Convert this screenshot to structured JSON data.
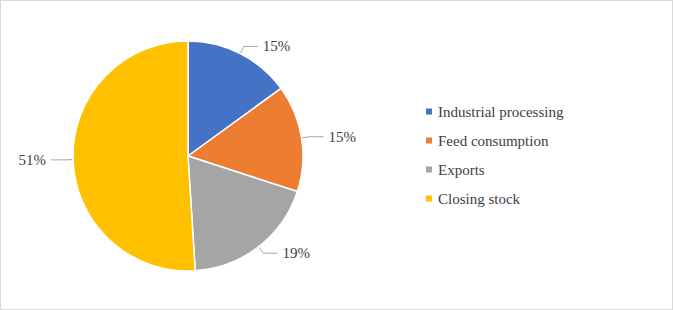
{
  "chart_data": {
    "type": "pie",
    "categories": [
      "Industrial processing",
      "Feed consumption",
      "Exports",
      "Closing stock"
    ],
    "values": [
      15,
      15,
      19,
      51
    ],
    "value_labels": [
      "15%",
      "15%",
      "19%",
      "51%"
    ],
    "colors": [
      "#4472c4",
      "#ed7d31",
      "#a5a5a5",
      "#ffc000"
    ],
    "data_labels": true,
    "legend": "right"
  }
}
